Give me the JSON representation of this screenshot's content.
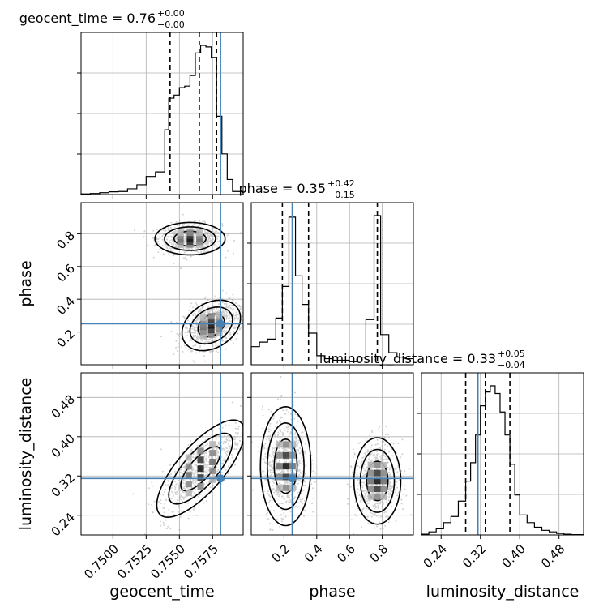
{
  "chart_data": {
    "type": "corner",
    "parameters": [
      {
        "name": "geocent_time",
        "title_value": "0.76",
        "title_plus": "+0.00",
        "title_minus": "−0.00",
        "axis_label": "geocent_time",
        "range": [
          0.7476,
          0.7598
        ],
        "ticks": [
          0.75,
          0.7525,
          0.755,
          0.7575
        ],
        "tick_labels": [
          "0.7500",
          "0.7525",
          "0.7550",
          "0.7575"
        ],
        "truth": 0.7581,
        "quantiles": [
          0.7543,
          0.7565,
          0.7578
        ],
        "histogram": {
          "bin_edges": [
            0.7476,
            0.7483,
            0.749,
            0.7497,
            0.7504,
            0.7511,
            0.7518,
            0.7525,
            0.7532,
            0.7539,
            0.7542,
            0.7546,
            0.755,
            0.7554,
            0.7558,
            0.7562,
            0.7566,
            0.757,
            0.7574,
            0.7578,
            0.7582,
            0.7586,
            0.759,
            0.7598
          ],
          "counts": [
            0.004,
            0.007,
            0.012,
            0.018,
            0.02,
            0.038,
            0.065,
            0.12,
            0.15,
            0.43,
            0.64,
            0.66,
            0.71,
            0.72,
            0.79,
            0.94,
            0.99,
            0.98,
            0.91,
            0.52,
            0.27,
            0.1,
            0.02
          ]
        }
      },
      {
        "name": "phase",
        "title_value": "0.35",
        "title_plus": "+0.42",
        "title_minus": "−0.15",
        "axis_label": "phase",
        "range": [
          0.0,
          0.99
        ],
        "ticks": [
          0.2,
          0.4,
          0.6,
          0.8
        ],
        "tick_labels": [
          "0.2",
          "0.4",
          "0.6",
          "0.8"
        ],
        "truth": 0.25,
        "quantiles": [
          0.19,
          0.35,
          0.77
        ],
        "histogram": {
          "bin_edges": [
            0.0,
            0.05,
            0.1,
            0.15,
            0.19,
            0.23,
            0.27,
            0.31,
            0.35,
            0.4,
            0.45,
            0.5,
            0.55,
            0.6,
            0.65,
            0.7,
            0.75,
            0.79,
            0.84,
            0.89,
            0.94,
            0.99
          ],
          "counts": [
            0.12,
            0.15,
            0.17,
            0.31,
            0.52,
            0.98,
            0.59,
            0.4,
            0.21,
            0.06,
            0.04,
            0.03,
            0.03,
            0.02,
            0.05,
            0.3,
            0.99,
            0.2,
            0.08,
            0.05,
            0.04
          ]
        }
      },
      {
        "name": "luminosity_distance",
        "title_value": "0.33",
        "title_plus": "+0.05",
        "title_minus": "−0.04",
        "axis_label": "luminosity_distance",
        "range": [
          0.2,
          0.53
        ],
        "ticks": [
          0.24,
          0.32,
          0.4,
          0.48
        ],
        "tick_labels": [
          "0.24",
          "0.32",
          "0.40",
          "0.48"
        ],
        "truth": 0.315,
        "quantiles": [
          0.29,
          0.33,
          0.38
        ],
        "histogram": {
          "bin_edges": [
            0.2,
            0.215,
            0.23,
            0.245,
            0.26,
            0.275,
            0.29,
            0.3,
            0.31,
            0.32,
            0.33,
            0.34,
            0.35,
            0.36,
            0.37,
            0.38,
            0.39,
            0.4,
            0.415,
            0.43,
            0.445,
            0.46,
            0.475,
            0.49,
            0.505,
            0.53
          ],
          "counts": [
            0.005,
            0.02,
            0.04,
            0.08,
            0.12,
            0.22,
            0.35,
            0.47,
            0.65,
            0.84,
            0.93,
            0.97,
            0.92,
            0.8,
            0.65,
            0.46,
            0.26,
            0.13,
            0.08,
            0.05,
            0.03,
            0.02,
            0.01,
            0.005,
            0.002
          ]
        }
      }
    ],
    "pairs": [
      {
        "x": "geocent_time",
        "y": "phase",
        "modes": [
          {
            "cx": 0.7558,
            "cy": 0.77,
            "sx": 0.0012,
            "sy": 0.045,
            "rho": 0.0,
            "weight": 1.0
          },
          {
            "cx": 0.7574,
            "cy": 0.24,
            "sx": 0.001,
            "sy": 0.07,
            "rho": 0.3,
            "weight": 1.2
          }
        ],
        "truth_point": [
          0.7581,
          0.25
        ]
      },
      {
        "x": "geocent_time",
        "y": "luminosity_distance",
        "modes": [
          {
            "cx": 0.7566,
            "cy": 0.335,
            "sx": 0.0015,
            "sy": 0.045,
            "rho": 0.75,
            "weight": 1.0
          }
        ],
        "truth_point": [
          0.7581,
          0.315
        ]
      },
      {
        "x": "phase",
        "y": "luminosity_distance",
        "modes": [
          {
            "cx": 0.21,
            "cy": 0.34,
            "sx": 0.07,
            "sy": 0.055,
            "rho": 0.0,
            "weight": 1.0
          },
          {
            "cx": 0.77,
            "cy": 0.31,
            "sx": 0.065,
            "sy": 0.04,
            "rho": 0.0,
            "weight": 1.0
          }
        ],
        "truth_point": [
          0.25,
          0.315
        ]
      }
    ],
    "truth_color": "#4682b4",
    "contour_color": "#000000",
    "grid": true
  }
}
